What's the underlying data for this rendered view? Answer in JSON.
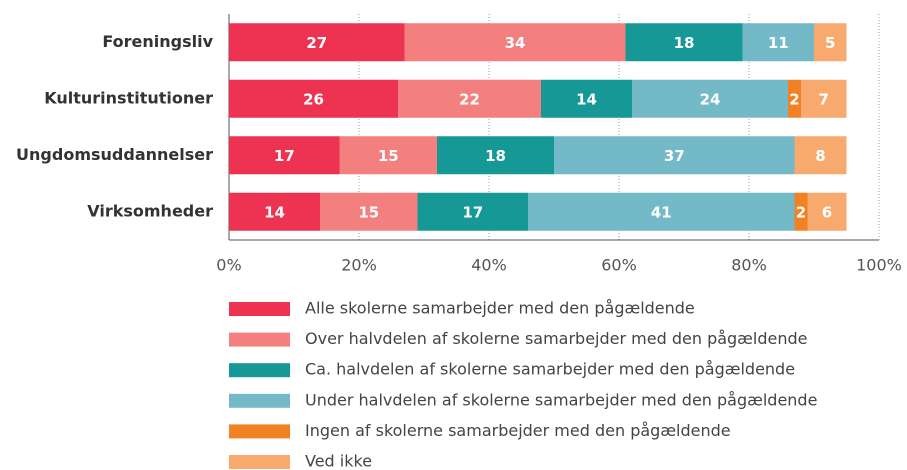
{
  "chart_data": {
    "type": "stacked_barh",
    "categories": [
      "Foreningsliv",
      "Kulturinstitutioner",
      "Ungdomsuddannelser",
      "Virksomheder"
    ],
    "series": [
      {
        "name": "Alle skolerne samarbejder med den pågældende",
        "color": "#ee3352",
        "values": [
          27,
          26,
          17,
          14
        ]
      },
      {
        "name": "Over halvdelen af skolerne samarbejder med den pågældende",
        "color": "#f47f7f",
        "values": [
          34,
          22,
          15,
          15
        ]
      },
      {
        "name": "Ca. halvdelen af skolerne samarbejder med den pågældende",
        "color": "#169996",
        "values": [
          18,
          14,
          18,
          17
        ]
      },
      {
        "name": "Under halvdelen af skolerne samarbejder med den pågældende",
        "color": "#74b9c8",
        "values": [
          11,
          24,
          37,
          41
        ]
      },
      {
        "name": "Ingen af skolerne samarbejder med den pågældende",
        "color": "#f08223",
        "values": [
          null,
          2,
          null,
          2
        ]
      },
      {
        "name": "Ved ikke",
        "color": "#f8a96e",
        "values": [
          5,
          7,
          8,
          6
        ]
      }
    ],
    "xlim": [
      0,
      100
    ],
    "xticks": [
      {
        "value": 0,
        "label": "0%"
      },
      {
        "value": 20,
        "label": "20%"
      },
      {
        "value": 40,
        "label": "40%"
      },
      {
        "value": 60,
        "label": "60%"
      },
      {
        "value": 80,
        "label": "80%"
      },
      {
        "value": 100,
        "label": "100%"
      }
    ],
    "grid": true,
    "legend": "bottom"
  }
}
